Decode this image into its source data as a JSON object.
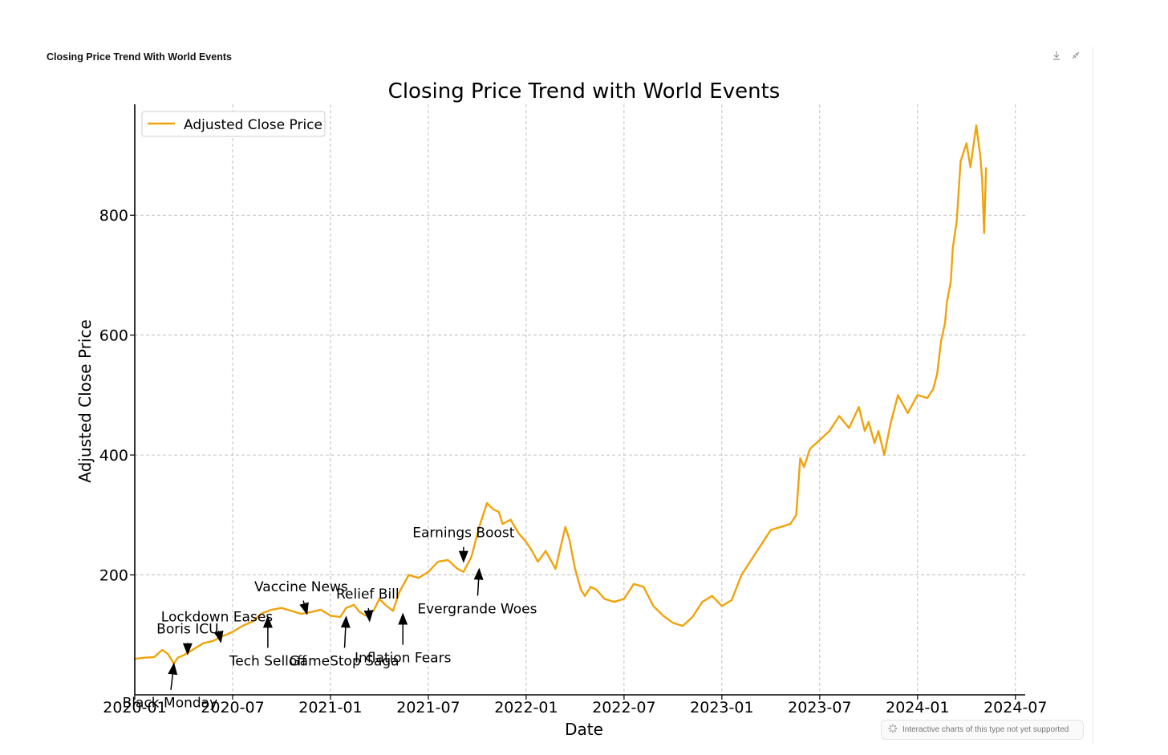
{
  "panel": {
    "title": "Closing Price Trend With World Events",
    "actions": [
      {
        "icon": "download-icon"
      },
      {
        "icon": "collapse-icon"
      }
    ]
  },
  "badge": {
    "icon": "loading-spinner-icon",
    "text": "Interactive charts of this type not yet supported"
  },
  "chart_data": {
    "type": "line",
    "title": "Closing Price Trend with World Events",
    "xlabel": "Date",
    "ylabel": "Adjusted Close Price",
    "grid": true,
    "legend": {
      "position": "top-left",
      "entries": [
        "Adjusted Close Price"
      ]
    },
    "colors": {
      "line": "#f0a30a",
      "grid": "#b0b0b0",
      "axis": "#000000"
    },
    "xlim": [
      2020.0,
      2024.55
    ],
    "ylim": [
      0,
      985
    ],
    "x_ticks": [
      {
        "value": 2020.0,
        "label": "2020-01"
      },
      {
        "value": 2020.5,
        "label": "2020-07"
      },
      {
        "value": 2021.0,
        "label": "2021-01"
      },
      {
        "value": 2021.5,
        "label": "2021-07"
      },
      {
        "value": 2022.0,
        "label": "2022-01"
      },
      {
        "value": 2022.5,
        "label": "2022-07"
      },
      {
        "value": 2023.0,
        "label": "2023-01"
      },
      {
        "value": 2023.5,
        "label": "2023-07"
      },
      {
        "value": 2024.0,
        "label": "2024-01"
      },
      {
        "value": 2024.5,
        "label": "2024-07"
      }
    ],
    "y_ticks": [
      {
        "value": 200,
        "label": "200"
      },
      {
        "value": 400,
        "label": "400"
      },
      {
        "value": 600,
        "label": "600"
      },
      {
        "value": 800,
        "label": "800"
      }
    ],
    "series": [
      {
        "name": "Adjusted Close Price",
        "x": [
          2020.0,
          2020.05,
          2020.1,
          2020.14,
          2020.17,
          2020.2,
          2020.22,
          2020.25,
          2020.28,
          2020.3,
          2020.35,
          2020.4,
          2020.45,
          2020.5,
          2020.55,
          2020.6,
          2020.65,
          2020.7,
          2020.75,
          2020.8,
          2020.85,
          2020.9,
          2020.95,
          2021.0,
          2021.05,
          2021.08,
          2021.12,
          2021.15,
          2021.18,
          2021.22,
          2021.25,
          2021.28,
          2021.32,
          2021.35,
          2021.4,
          2021.45,
          2021.5,
          2021.55,
          2021.6,
          2021.65,
          2021.68,
          2021.72,
          2021.76,
          2021.8,
          2021.83,
          2021.86,
          2021.88,
          2021.92,
          2021.96,
          2022.0,
          2022.03,
          2022.06,
          2022.1,
          2022.15,
          2022.2,
          2022.22,
          2022.25,
          2022.28,
          2022.3,
          2022.33,
          2022.36,
          2022.4,
          2022.45,
          2022.5,
          2022.55,
          2022.6,
          2022.65,
          2022.7,
          2022.75,
          2022.8,
          2022.85,
          2022.9,
          2022.95,
          2023.0,
          2023.05,
          2023.1,
          2023.15,
          2023.2,
          2023.25,
          2023.3,
          2023.35,
          2023.38,
          2023.4,
          2023.42,
          2023.45,
          2023.5,
          2023.55,
          2023.6,
          2023.65,
          2023.7,
          2023.73,
          2023.75,
          2023.78,
          2023.8,
          2023.83,
          2023.86,
          2023.9,
          2023.95,
          2024.0,
          2024.05,
          2024.08,
          2024.1,
          2024.12,
          2024.14,
          2024.15,
          2024.17,
          2024.18,
          2024.2,
          2024.22,
          2024.25,
          2024.27,
          2024.3,
          2024.32,
          2024.33,
          2024.34,
          2024.35
        ],
        "y": [
          60,
          62,
          63,
          75,
          68,
          52,
          62,
          66,
          72,
          76,
          86,
          90,
          98,
          105,
          115,
          122,
          136,
          142,
          145,
          140,
          135,
          138,
          142,
          132,
          130,
          145,
          150,
          138,
          132,
          140,
          160,
          150,
          140,
          170,
          200,
          195,
          205,
          222,
          225,
          210,
          205,
          230,
          280,
          320,
          310,
          305,
          285,
          292,
          270,
          255,
          240,
          222,
          240,
          210,
          280,
          260,
          210,
          175,
          165,
          180,
          175,
          160,
          155,
          160,
          185,
          180,
          148,
          132,
          120,
          115,
          130,
          155,
          165,
          148,
          158,
          200,
          225,
          250,
          275,
          280,
          285,
          300,
          395,
          380,
          410,
          425,
          440,
          465,
          445,
          480,
          440,
          455,
          420,
          440,
          400,
          450,
          500,
          470,
          500,
          495,
          510,
          535,
          590,
          620,
          655,
          690,
          745,
          790,
          890,
          920,
          880,
          950,
          900,
          860,
          770,
          880
        ]
      }
    ],
    "annotations": [
      {
        "text": "Black Monday",
        "x": 2020.2,
        "y": 52,
        "text_x": 2020.18,
        "text_y": -5
      },
      {
        "text": "Boris ICU",
        "x": 2020.27,
        "y": 68,
        "text_x": 2020.27,
        "text_y": 100
      },
      {
        "text": "Lockdown Eases",
        "x": 2020.44,
        "y": 88,
        "text_x": 2020.42,
        "text_y": 120
      },
      {
        "text": "Tech Selloff",
        "x": 2020.68,
        "y": 130,
        "text_x": 2020.68,
        "text_y": 65
      },
      {
        "text": "Vaccine News",
        "x": 2020.88,
        "y": 135,
        "text_x": 2020.85,
        "text_y": 170
      },
      {
        "text": "GameStop Saga",
        "x": 2021.08,
        "y": 130,
        "text_x": 2021.07,
        "text_y": 65
      },
      {
        "text": "Relief Bill",
        "x": 2021.2,
        "y": 123,
        "text_x": 2021.19,
        "text_y": 158
      },
      {
        "text": "Inflation Fears",
        "x": 2021.37,
        "y": 135,
        "text_x": 2021.37,
        "text_y": 70
      },
      {
        "text": "Earnings Boost",
        "x": 2021.68,
        "y": 222,
        "text_x": 2021.68,
        "text_y": 260
      },
      {
        "text": "Evergrande Woes",
        "x": 2021.76,
        "y": 210,
        "text_x": 2021.75,
        "text_y": 152
      }
    ]
  }
}
